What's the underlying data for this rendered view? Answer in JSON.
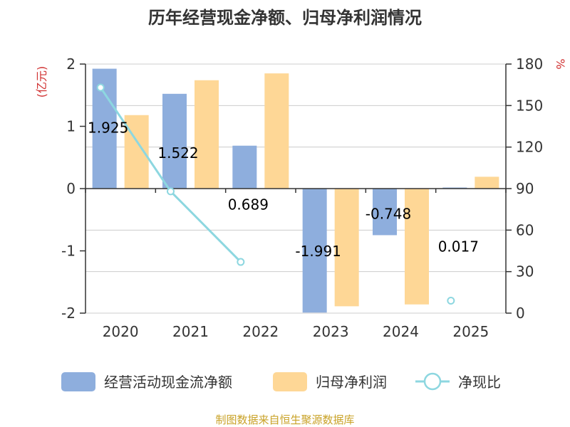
{
  "chart_data": {
    "type": "bar",
    "title": "历年经营现金净额、归母净利润情况",
    "categories": [
      "2020",
      "2021",
      "2022",
      "2023",
      "2024",
      "2025"
    ],
    "y_left": {
      "unit": "(亿元)",
      "ylim": [
        -2,
        2
      ],
      "ticks": [
        "2",
        "1",
        "0",
        "-1",
        "-2"
      ]
    },
    "y_right": {
      "unit": "%",
      "ylim": [
        0,
        180
      ],
      "ticks": [
        "180",
        "150",
        "120",
        "90",
        "60",
        "30",
        "0"
      ]
    },
    "series": [
      {
        "name": "经营活动现金流净额",
        "kind": "bar",
        "color": "#8eaedd",
        "values": [
          1.925,
          1.522,
          0.689,
          -1.991,
          -0.748,
          0.017
        ],
        "labels": [
          "1.925",
          "1.522",
          "0.689",
          "-1.991",
          "-0.748",
          "0.017"
        ]
      },
      {
        "name": "归母净利润",
        "kind": "bar",
        "color": "#fed796",
        "values": [
          1.18,
          1.74,
          1.85,
          -1.89,
          -1.86,
          0.19
        ]
      },
      {
        "name": "净现比",
        "kind": "line",
        "axis": "right",
        "color": "#8dd7e0",
        "values": [
          163,
          88,
          37,
          null,
          null,
          9
        ]
      }
    ],
    "grid": true,
    "legend": "bottom",
    "source": "制图数据来自恒生聚源数据库"
  }
}
